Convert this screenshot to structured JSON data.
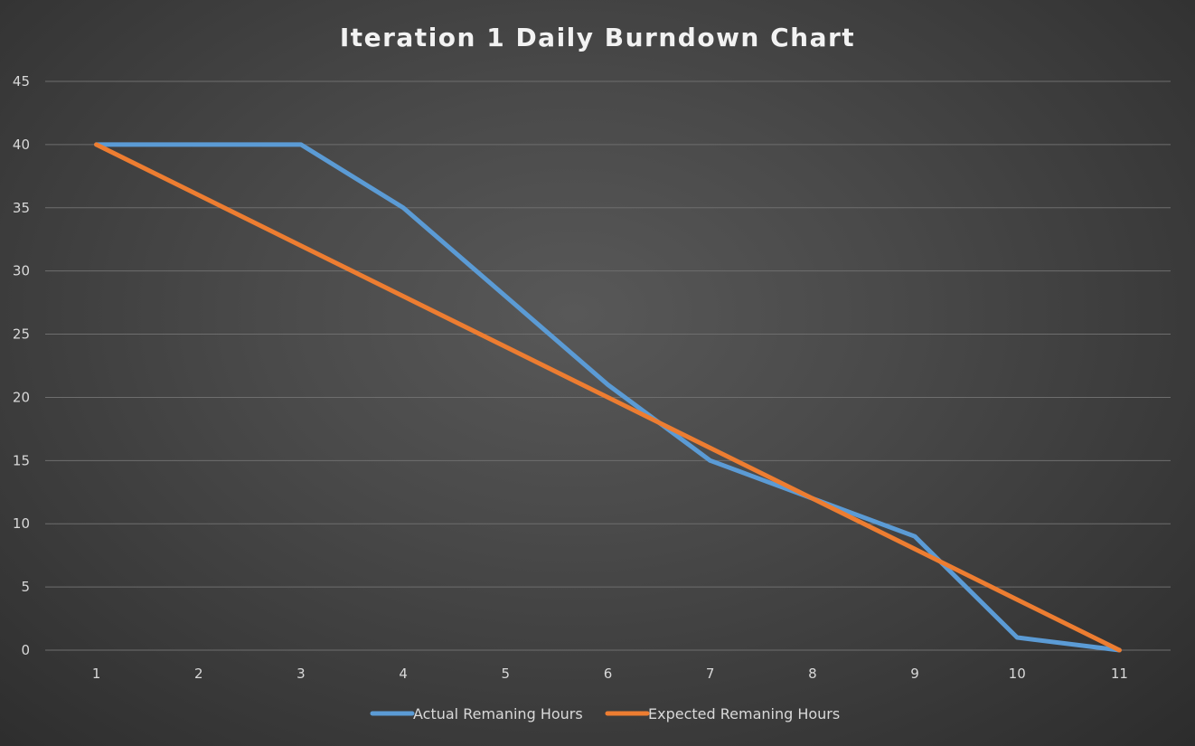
{
  "chart_data": {
    "type": "line",
    "title": "Iteration 1 Daily Burndown Chart",
    "xlabel": "",
    "ylabel": "",
    "x": [
      "1",
      "2",
      "3",
      "4",
      "5",
      "6",
      "7",
      "8",
      "9",
      "10",
      "11"
    ],
    "ylim": [
      0,
      45
    ],
    "yticks": [
      0,
      5,
      10,
      15,
      20,
      25,
      30,
      35,
      40,
      45
    ],
    "grid": true,
    "legend_position": "bottom",
    "series": [
      {
        "name": "Actual Remaning Hours",
        "color": "#5b9bd5",
        "values": [
          40,
          40,
          40,
          35,
          28,
          21,
          15,
          12,
          9,
          1,
          0
        ]
      },
      {
        "name": "Expected Remaning Hours",
        "color": "#ed7d31",
        "values": [
          40,
          36,
          32,
          28,
          24,
          20,
          16,
          12,
          8,
          4,
          0
        ]
      }
    ]
  }
}
